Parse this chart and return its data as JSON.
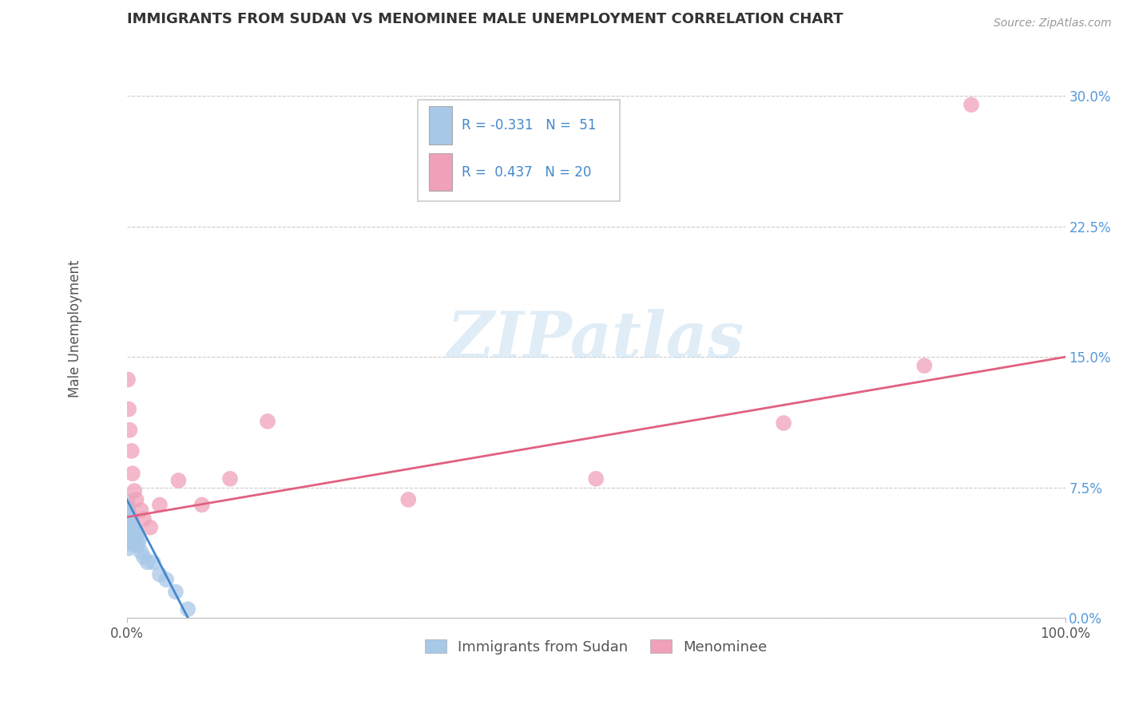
{
  "title": "IMMIGRANTS FROM SUDAN VS MENOMINEE MALE UNEMPLOYMENT CORRELATION CHART",
  "source": "Source: ZipAtlas.com",
  "xlabel": "",
  "ylabel": "Male Unemployment",
  "xlim": [
    0,
    1.0
  ],
  "ylim": [
    0,
    0.333
  ],
  "yticks": [
    0.0,
    0.075,
    0.15,
    0.225,
    0.3
  ],
  "ytick_labels": [
    "0.0%",
    "7.5%",
    "15.0%",
    "22.5%",
    "30.0%"
  ],
  "xticks": [
    0.0,
    1.0
  ],
  "xtick_labels": [
    "0.0%",
    "100.0%"
  ],
  "background_color": "#ffffff",
  "grid_color": "#cccccc",
  "watermark_text": "ZIPatlas",
  "sudan_color": "#a8c8e8",
  "menominee_color": "#f0a0b8",
  "sudan_line_color": "#4488cc",
  "menominee_line_color": "#e06080",
  "sudan_points": [
    [
      0.0005,
      0.062
    ],
    [
      0.0005,
      0.054
    ],
    [
      0.0005,
      0.051
    ],
    [
      0.0008,
      0.067
    ],
    [
      0.001,
      0.063
    ],
    [
      0.001,
      0.058
    ],
    [
      0.001,
      0.055
    ],
    [
      0.001,
      0.052
    ],
    [
      0.001,
      0.049
    ],
    [
      0.0015,
      0.06
    ],
    [
      0.0015,
      0.057
    ],
    [
      0.0015,
      0.053
    ],
    [
      0.002,
      0.05
    ],
    [
      0.002,
      0.046
    ],
    [
      0.002,
      0.043
    ],
    [
      0.002,
      0.04
    ],
    [
      0.0025,
      0.055
    ],
    [
      0.0025,
      0.051
    ],
    [
      0.003,
      0.047
    ],
    [
      0.003,
      0.044
    ],
    [
      0.003,
      0.059
    ],
    [
      0.003,
      0.052
    ],
    [
      0.003,
      0.048
    ],
    [
      0.004,
      0.044
    ],
    [
      0.004,
      0.053
    ],
    [
      0.004,
      0.049
    ],
    [
      0.004,
      0.046
    ],
    [
      0.005,
      0.057
    ],
    [
      0.005,
      0.051
    ],
    [
      0.005,
      0.046
    ],
    [
      0.006,
      0.049
    ],
    [
      0.006,
      0.044
    ],
    [
      0.007,
      0.052
    ],
    [
      0.007,
      0.047
    ],
    [
      0.007,
      0.042
    ],
    [
      0.008,
      0.048
    ],
    [
      0.008,
      0.044
    ],
    [
      0.009,
      0.051
    ],
    [
      0.009,
      0.045
    ],
    [
      0.01,
      0.047
    ],
    [
      0.01,
      0.043
    ],
    [
      0.012,
      0.042
    ],
    [
      0.013,
      0.045
    ],
    [
      0.015,
      0.038
    ],
    [
      0.018,
      0.035
    ],
    [
      0.022,
      0.032
    ],
    [
      0.028,
      0.032
    ],
    [
      0.035,
      0.025
    ],
    [
      0.042,
      0.022
    ],
    [
      0.052,
      0.015
    ],
    [
      0.065,
      0.005
    ]
  ],
  "menominee_points": [
    [
      0.001,
      0.137
    ],
    [
      0.002,
      0.12
    ],
    [
      0.003,
      0.108
    ],
    [
      0.005,
      0.096
    ],
    [
      0.006,
      0.083
    ],
    [
      0.008,
      0.073
    ],
    [
      0.01,
      0.068
    ],
    [
      0.015,
      0.062
    ],
    [
      0.018,
      0.057
    ],
    [
      0.025,
      0.052
    ],
    [
      0.035,
      0.065
    ],
    [
      0.055,
      0.079
    ],
    [
      0.08,
      0.065
    ],
    [
      0.11,
      0.08
    ],
    [
      0.15,
      0.113
    ],
    [
      0.3,
      0.068
    ],
    [
      0.5,
      0.08
    ],
    [
      0.7,
      0.112
    ],
    [
      0.85,
      0.145
    ],
    [
      0.9,
      0.295
    ]
  ],
  "sudan_trend_x": [
    0.0,
    0.068
  ],
  "sudan_trend_y": [
    0.068,
    -0.003
  ],
  "menominee_trend_x": [
    0.0,
    1.0
  ],
  "menominee_trend_y": [
    0.058,
    0.15
  ]
}
